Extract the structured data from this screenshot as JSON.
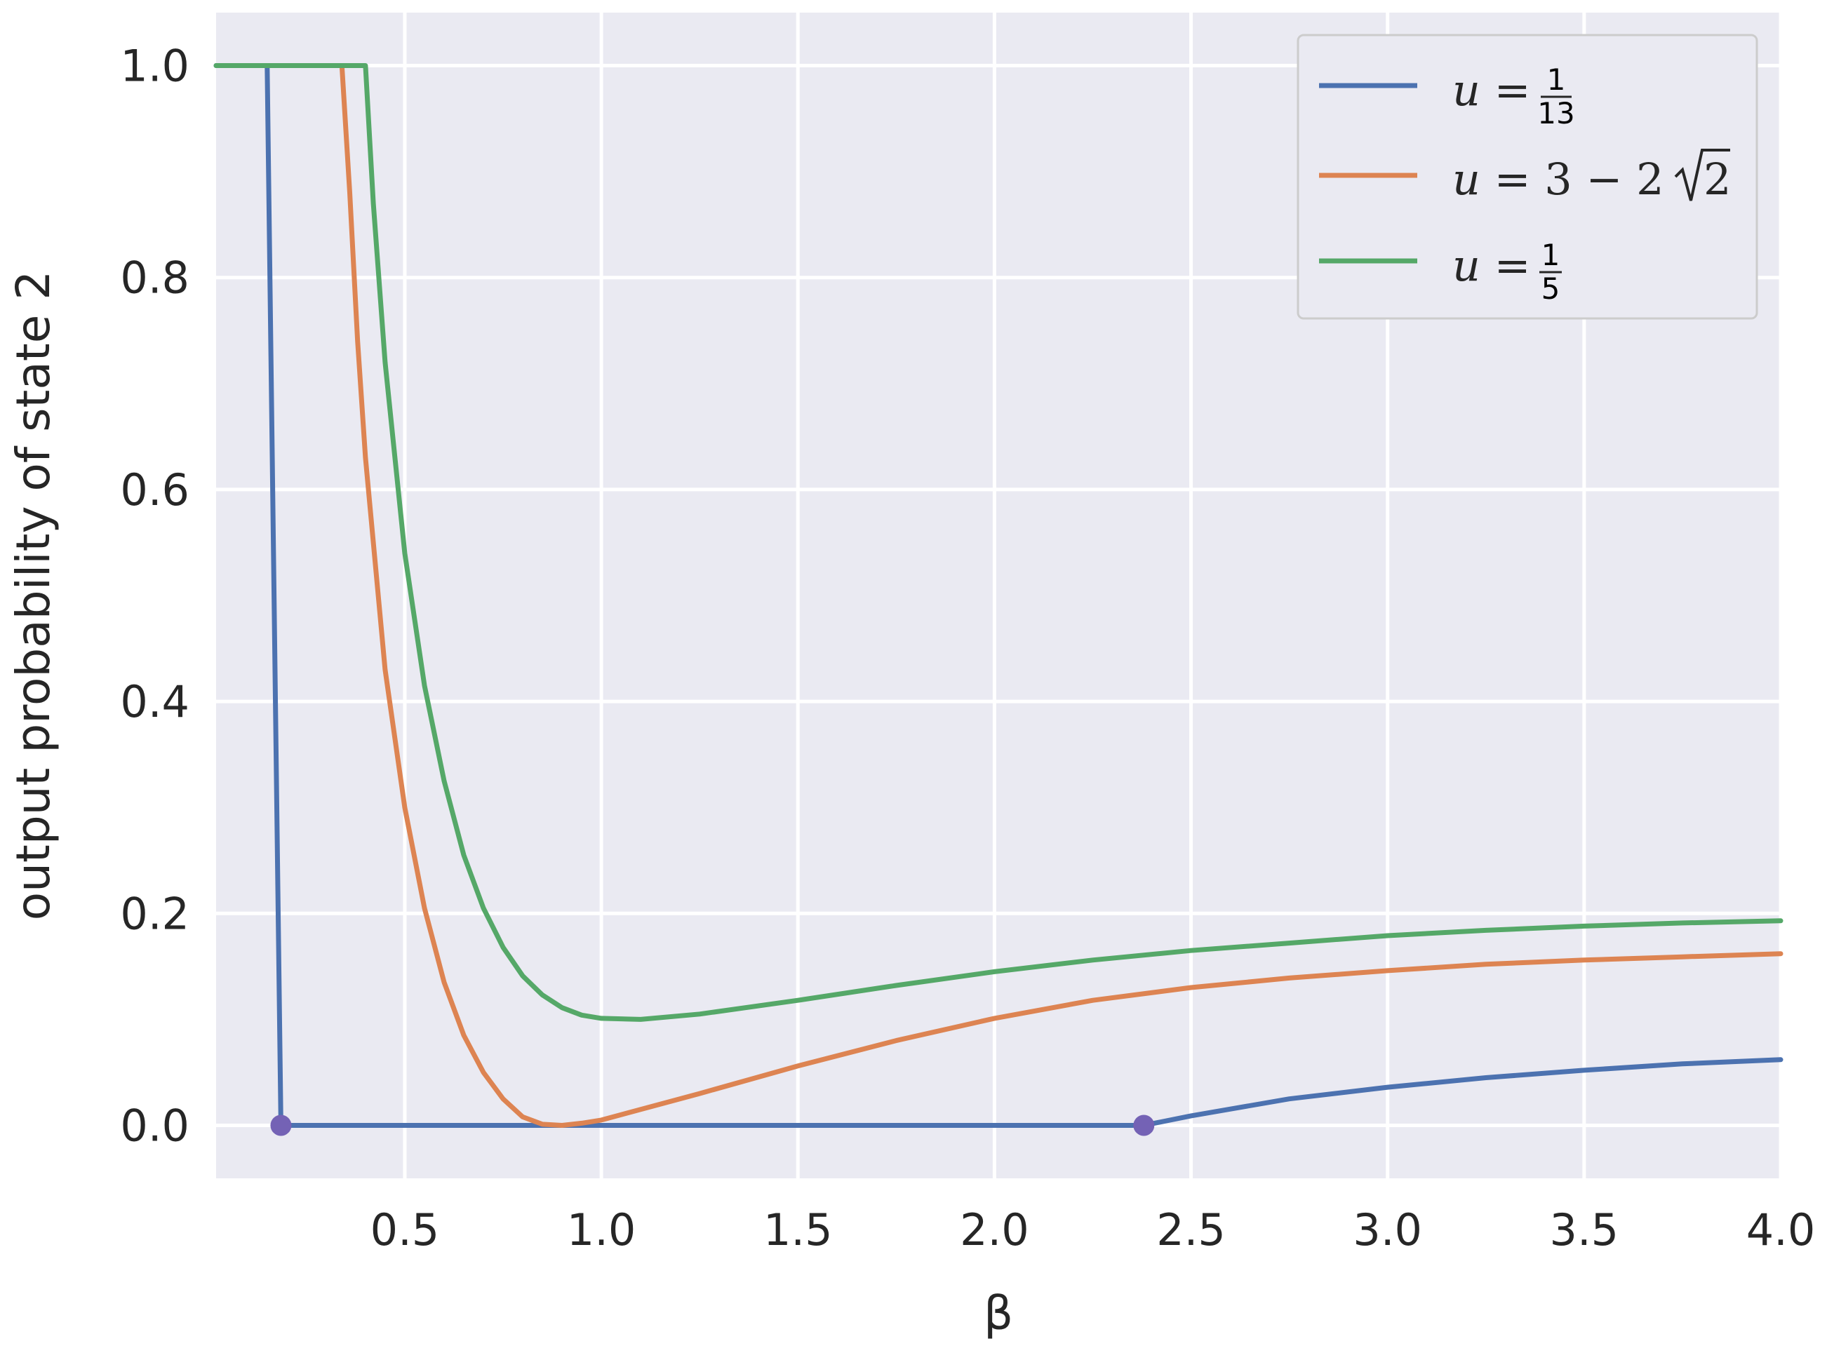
{
  "chart_data": {
    "type": "line",
    "xlabel": "β",
    "ylabel": "output probability of state 2",
    "xlim": [
      0.02,
      4.0
    ],
    "ylim": [
      -0.05,
      1.05
    ],
    "x_ticks": [
      "0.5",
      "1.0",
      "1.5",
      "2.0",
      "2.5",
      "3.0",
      "3.5",
      "4.0"
    ],
    "y_ticks": [
      "0.0",
      "0.2",
      "0.4",
      "0.6",
      "0.8",
      "1.0"
    ],
    "grid": true,
    "legend_position": "top-right",
    "series": [
      {
        "name": "u = 1/13",
        "color": "#4c72b0",
        "points": [
          [
            0.02,
            1.0
          ],
          [
            0.15,
            1.0
          ],
          [
            0.185,
            0.0
          ],
          [
            2.38,
            0.0
          ],
          [
            2.5,
            0.009
          ],
          [
            2.75,
            0.025
          ],
          [
            3.0,
            0.036
          ],
          [
            3.25,
            0.045
          ],
          [
            3.5,
            0.052
          ],
          [
            3.75,
            0.058
          ],
          [
            4.0,
            0.062
          ]
        ]
      },
      {
        "name": "u = 3 − 2√2",
        "color": "#dd8452",
        "points": [
          [
            0.34,
            1.0
          ],
          [
            0.36,
            0.88
          ],
          [
            0.38,
            0.74
          ],
          [
            0.4,
            0.63
          ],
          [
            0.45,
            0.43
          ],
          [
            0.5,
            0.3
          ],
          [
            0.55,
            0.205
          ],
          [
            0.6,
            0.135
          ],
          [
            0.65,
            0.085
          ],
          [
            0.7,
            0.05
          ],
          [
            0.75,
            0.025
          ],
          [
            0.8,
            0.008
          ],
          [
            0.85,
            0.001
          ],
          [
            0.9,
            0.0
          ],
          [
            0.95,
            0.002
          ],
          [
            1.0,
            0.005
          ],
          [
            1.1,
            0.015
          ],
          [
            1.25,
            0.03
          ],
          [
            1.5,
            0.056
          ],
          [
            1.75,
            0.08
          ],
          [
            2.0,
            0.101
          ],
          [
            2.25,
            0.118
          ],
          [
            2.5,
            0.13
          ],
          [
            2.75,
            0.139
          ],
          [
            3.0,
            0.146
          ],
          [
            3.25,
            0.152
          ],
          [
            3.5,
            0.156
          ],
          [
            3.75,
            0.159
          ],
          [
            4.0,
            0.162
          ]
        ]
      },
      {
        "name": "u = 1/5",
        "color": "#55a868",
        "points": [
          [
            0.02,
            1.0
          ],
          [
            0.4,
            1.0
          ],
          [
            0.42,
            0.87
          ],
          [
            0.45,
            0.72
          ],
          [
            0.5,
            0.54
          ],
          [
            0.55,
            0.415
          ],
          [
            0.6,
            0.325
          ],
          [
            0.65,
            0.255
          ],
          [
            0.7,
            0.205
          ],
          [
            0.75,
            0.168
          ],
          [
            0.8,
            0.141
          ],
          [
            0.85,
            0.123
          ],
          [
            0.9,
            0.111
          ],
          [
            0.95,
            0.104
          ],
          [
            1.0,
            0.101
          ],
          [
            1.1,
            0.1
          ],
          [
            1.25,
            0.105
          ],
          [
            1.5,
            0.118
          ],
          [
            1.75,
            0.132
          ],
          [
            2.0,
            0.145
          ],
          [
            2.25,
            0.156
          ],
          [
            2.5,
            0.165
          ],
          [
            2.75,
            0.172
          ],
          [
            3.0,
            0.179
          ],
          [
            3.25,
            0.184
          ],
          [
            3.5,
            0.188
          ],
          [
            3.75,
            0.191
          ],
          [
            4.0,
            0.193
          ]
        ]
      }
    ],
    "markers": [
      {
        "x": 0.185,
        "y": 0.0,
        "color": "#7462b5"
      },
      {
        "x": 2.38,
        "y": 0.0,
        "color": "#7462b5"
      }
    ]
  }
}
